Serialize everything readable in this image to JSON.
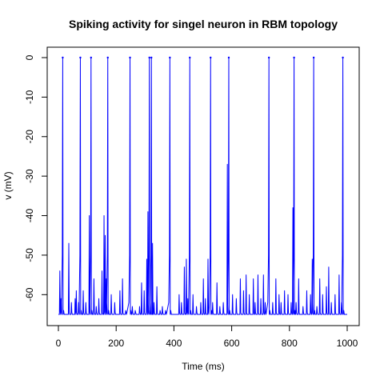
{
  "chart_data": {
    "type": "line",
    "title": "Spiking activity for singel neuron in RBM topology",
    "xlabel": "Time (ms)",
    "ylabel": "v (mV)",
    "xlim": [
      0,
      1000
    ],
    "ylim": [
      -65,
      0
    ],
    "x_ticks": [
      0,
      200,
      400,
      600,
      800,
      1000
    ],
    "y_ticks": [
      0,
      -10,
      -20,
      -30,
      -40,
      -50,
      -60
    ],
    "grid": false,
    "legend": "none",
    "line_color": "#0000ff",
    "resting_mV": -65,
    "series": [
      {
        "spikes": [
          {
            "t": 15,
            "peak": 0
          },
          {
            "t": 76,
            "peak": 0
          },
          {
            "t": 113,
            "peak": 0
          },
          {
            "t": 171,
            "peak": 0
          },
          {
            "t": 248,
            "peak": 0
          },
          {
            "t": 315,
            "peak": 0
          },
          {
            "t": 322,
            "peak": 0
          },
          {
            "t": 386,
            "peak": 0
          },
          {
            "t": 455,
            "peak": 0
          },
          {
            "t": 527,
            "peak": 0
          },
          {
            "t": 590,
            "peak": 0
          },
          {
            "t": 729,
            "peak": 0
          },
          {
            "t": 816,
            "peak": 0
          },
          {
            "t": 884,
            "peak": 0
          },
          {
            "t": 985,
            "peak": 0
          }
        ],
        "subthreshold_peaks": [
          {
            "t": 5,
            "v": -54
          },
          {
            "t": 9,
            "v": -61
          },
          {
            "t": 36,
            "v": -47
          },
          {
            "t": 45,
            "v": -62
          },
          {
            "t": 58,
            "v": -61
          },
          {
            "t": 62,
            "v": -59
          },
          {
            "t": 70,
            "v": -62
          },
          {
            "t": 86,
            "v": -59
          },
          {
            "t": 95,
            "v": -62
          },
          {
            "t": 107,
            "v": -40
          },
          {
            "t": 123,
            "v": -56
          },
          {
            "t": 131,
            "v": -63
          },
          {
            "t": 140,
            "v": -61
          },
          {
            "t": 151,
            "v": -54
          },
          {
            "t": 158,
            "v": -40
          },
          {
            "t": 162,
            "v": -45
          },
          {
            "t": 166,
            "v": -56
          },
          {
            "t": 183,
            "v": -60
          },
          {
            "t": 195,
            "v": -62
          },
          {
            "t": 213,
            "v": -59
          },
          {
            "t": 222,
            "v": -56
          },
          {
            "t": 233,
            "v": -64
          },
          {
            "t": 256,
            "v": -63
          },
          {
            "t": 266,
            "v": -64
          },
          {
            "t": 281,
            "v": -63
          },
          {
            "t": 288,
            "v": -57
          },
          {
            "t": 297,
            "v": -59
          },
          {
            "t": 306,
            "v": -51
          },
          {
            "t": 310,
            "v": -39
          },
          {
            "t": 326,
            "v": -47
          },
          {
            "t": 331,
            "v": -62
          },
          {
            "t": 341,
            "v": -58
          },
          {
            "t": 352,
            "v": -64
          },
          {
            "t": 360,
            "v": -63
          },
          {
            "t": 371,
            "v": -64
          },
          {
            "t": 418,
            "v": -60
          },
          {
            "t": 426,
            "v": -62
          },
          {
            "t": 436,
            "v": -53
          },
          {
            "t": 443,
            "v": -51
          },
          {
            "t": 448,
            "v": -61
          },
          {
            "t": 466,
            "v": -60
          },
          {
            "t": 478,
            "v": -63
          },
          {
            "t": 493,
            "v": -62
          },
          {
            "t": 502,
            "v": -56
          },
          {
            "t": 509,
            "v": -61
          },
          {
            "t": 518,
            "v": -51
          },
          {
            "t": 534,
            "v": -62
          },
          {
            "t": 549,
            "v": -57
          },
          {
            "t": 559,
            "v": -63
          },
          {
            "t": 571,
            "v": -62
          },
          {
            "t": 585,
            "v": -27
          },
          {
            "t": 603,
            "v": -60
          },
          {
            "t": 616,
            "v": -61
          },
          {
            "t": 630,
            "v": -56
          },
          {
            "t": 641,
            "v": -59
          },
          {
            "t": 650,
            "v": -55
          },
          {
            "t": 661,
            "v": -60
          },
          {
            "t": 675,
            "v": -56
          },
          {
            "t": 681,
            "v": -62
          },
          {
            "t": 691,
            "v": -55
          },
          {
            "t": 701,
            "v": -61
          },
          {
            "t": 710,
            "v": -55
          },
          {
            "t": 716,
            "v": -62
          },
          {
            "t": 742,
            "v": -62
          },
          {
            "t": 753,
            "v": -56
          },
          {
            "t": 764,
            "v": -60
          },
          {
            "t": 771,
            "v": -62
          },
          {
            "t": 783,
            "v": -59
          },
          {
            "t": 795,
            "v": -60
          },
          {
            "t": 806,
            "v": -62
          },
          {
            "t": 812,
            "v": -38
          },
          {
            "t": 823,
            "v": -62
          },
          {
            "t": 832,
            "v": -56
          },
          {
            "t": 847,
            "v": -63
          },
          {
            "t": 860,
            "v": -59
          },
          {
            "t": 873,
            "v": -60
          },
          {
            "t": 879,
            "v": -51
          },
          {
            "t": 895,
            "v": -63
          },
          {
            "t": 905,
            "v": -56
          },
          {
            "t": 915,
            "v": -60
          },
          {
            "t": 928,
            "v": -58
          },
          {
            "t": 936,
            "v": -53
          },
          {
            "t": 945,
            "v": -62
          },
          {
            "t": 958,
            "v": -60
          },
          {
            "t": 972,
            "v": -55
          },
          {
            "t": 980,
            "v": -62
          }
        ]
      }
    ]
  }
}
